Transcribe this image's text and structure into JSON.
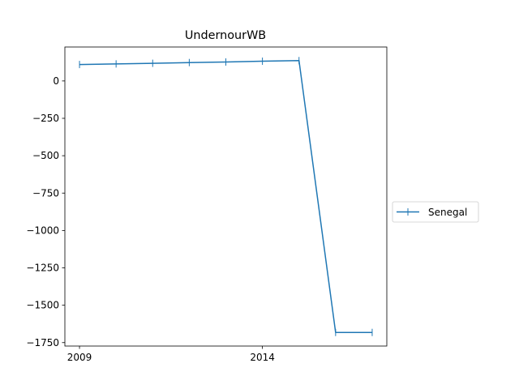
{
  "chart_data": {
    "type": "line",
    "title": "UndernourWB",
    "xlabel": "",
    "ylabel": "",
    "x": [
      2009,
      2010,
      2011,
      2012,
      2013,
      2014,
      2015,
      2016,
      2017
    ],
    "series": [
      {
        "name": "Senegal",
        "color": "#1f77b4",
        "marker": "vertical-tick",
        "values": [
          110,
          114,
          118,
          123,
          127,
          132,
          136,
          -1682,
          -1682
        ]
      }
    ],
    "xlim": [
      2008.6,
      2017.4
    ],
    "ylim": [
      -1773,
      227
    ],
    "xticks": [
      2009,
      2014
    ],
    "yticks": [
      0,
      -250,
      -500,
      -750,
      -1000,
      -1250,
      -1500,
      -1750
    ],
    "ytick_labels": [
      "0",
      "−250",
      "−500",
      "−750",
      "−1000",
      "−1250",
      "−1500",
      "−1750"
    ],
    "grid": false,
    "legend_position": "right-outside-center"
  }
}
